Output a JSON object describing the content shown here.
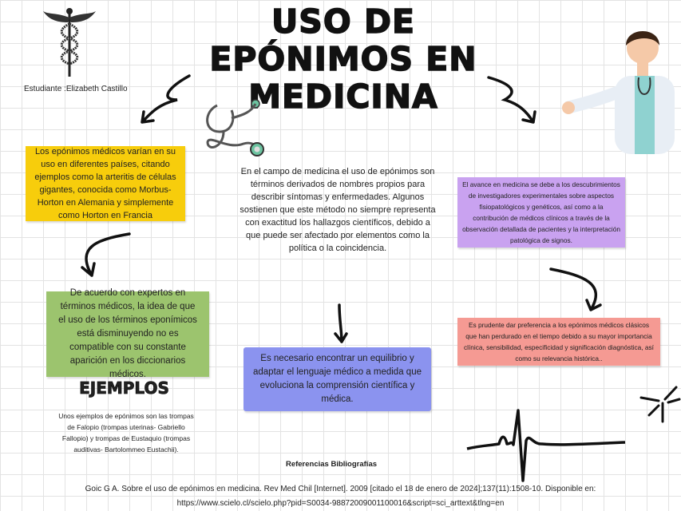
{
  "title": {
    "line1": "USO DE",
    "line2": "EPÓNIMOS EN",
    "line3": "MEDICINA"
  },
  "student": "Estudiante :Elizabeth Castillo",
  "boxes": {
    "yellow": {
      "text": "Los epónimos médicos varían en su uso en diferentes países, citando ejemplos como la arteritis de células gigantes, conocida como Morbus-Horton en Alemania y simplemente como Horton en Francia",
      "color": "#f7cd0c"
    },
    "center": {
      "text": "En el campo de medicina el uso de epónimos son términos derivados de nombres propios para describir síntomas y enfermedades. Algunos sostienen que este método no siempre representa con exactitud los hallazgos científicos, debido a que puede ser afectado por elementos como la política o la coincidencia."
    },
    "purple": {
      "text": "El avance en medicina se debe a los descubrimientos de investigadores experimentales sobre aspectos fisiopatológicos y genéticos, así como a la contribución de médicos clínicos a través de la observación detallada de pacientes y la interpretación patológica de signos.",
      "color": "#c9a2f0"
    },
    "green": {
      "text": "De acuerdo con expertos en términos médicos, la idea de que el uso de los términos eponímicos está disminuyendo no es compatible con su constante aparición en los diccionarios médicos.",
      "color": "#9cc46e"
    },
    "blue": {
      "text": "Es necesario encontrar un equilibrio y adaptar el lenguaje médico a medida que evoluciona la comprensión científica y médica.",
      "color": "#8b93ef"
    },
    "red": {
      "text": "Es prudente dar preferencia a los epónimos médicos clásicos que han perdurado en el tiempo debido a su mayor importancia clínica, sensibilidad, especificidad y significación diagnóstica, así como su relevancia histórica..",
      "color": "#f59a93"
    }
  },
  "examples": {
    "heading": "EJEMPLOS",
    "text": "Unos ejemplos de epónimos son las trompas de Falopio (trompas uterinas- Gabriello Fallopio) y trompas de Eustaquio (trompas auditivas- Bartolommeo Eustachii)."
  },
  "references": {
    "heading": "Referencias Bibliografías",
    "citation": "Goic G A. Sobre el uso de epónimos en medicina. Rev Med Chil [Internet]. 2009 [citado el 18 de enero de 2024];137(11):1508-10. Disponible en:",
    "url": "https://www.scielo.cl/scielo.php?pid=S0034-98872009001100016&script=sci_arttext&tlng=en"
  },
  "icons": [
    "caduceus-icon",
    "stethoscope-icon",
    "doctor-illustration",
    "ecg-icon",
    "sparkle-icon",
    "arrow-icon"
  ]
}
